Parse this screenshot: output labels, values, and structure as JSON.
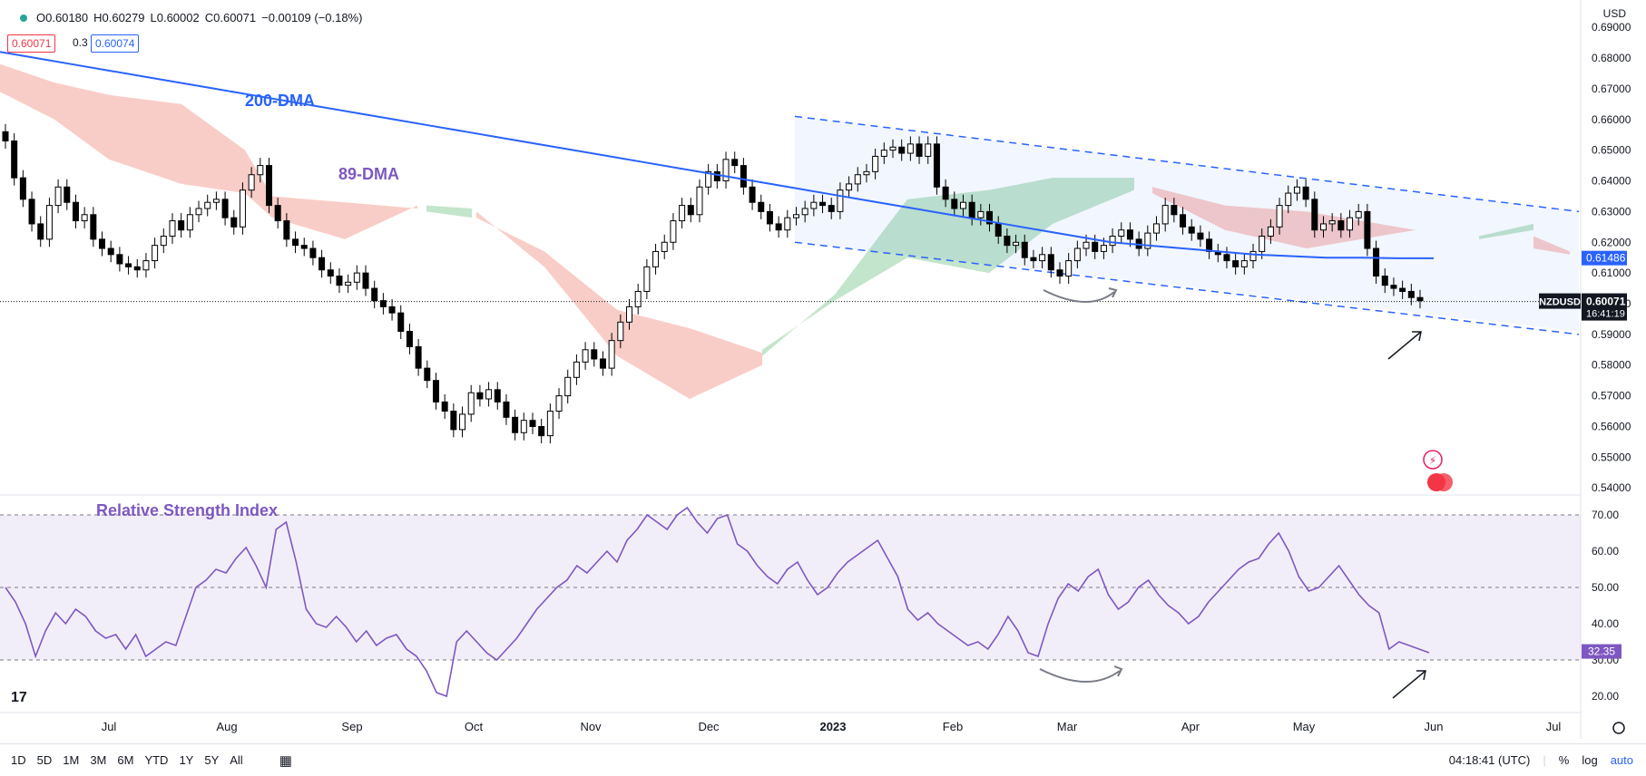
{
  "header": {
    "open": "O0.60180",
    "high": "H0.60279",
    "low": "L0.60002",
    "close": "C0.60071",
    "change": "−0.00109 (−0.18%)",
    "bid": "0.60071",
    "spread": "0.3",
    "ask": "0.60074",
    "currency": "USD"
  },
  "colors": {
    "bull": "#ffffff",
    "bear": "#000000",
    "ma200": "#2962ff",
    "rsi": "#7e57c2",
    "cloud_bear": "#f8c4bd",
    "cloud_bull": "#b9e0c2",
    "channel": "#2962ff",
    "current_price_bg": "#131722",
    "ma_label_bg": "#2962ff",
    "rsi_label_bg": "#7e57c2"
  },
  "toolbar": {
    "ranges": [
      "1D",
      "5D",
      "1M",
      "3M",
      "6M",
      "YTD",
      "1Y",
      "5Y",
      "All"
    ],
    "time": "04:18:41 (UTC)",
    "percent": "%",
    "log": "log",
    "auto": "auto"
  },
  "chart_data": {
    "type": "candlestick",
    "symbol": "NZDUSD",
    "price_axis": {
      "ticks": [
        "0.54000",
        "0.55000",
        "0.56000",
        "0.57000",
        "0.58000",
        "0.59000",
        "0.60000",
        "0.61000",
        "0.62000",
        "0.63000",
        "0.64000",
        "0.65000",
        "0.66000",
        "0.67000",
        "0.68000",
        "0.69000"
      ],
      "range": [
        0.538,
        0.693
      ]
    },
    "time_axis": {
      "labels": [
        "Jul",
        "Aug",
        "Sep",
        "Oct",
        "Nov",
        "Dec",
        "2023",
        "Feb",
        "Mar",
        "Apr",
        "May",
        "Jun",
        "Jul"
      ]
    },
    "current_price": "0.60071",
    "countdown": "16:41:19",
    "ma200_label": "0.61486",
    "annotations": {
      "ma200": "200-DMA",
      "ma89": "89-DMA",
      "rsi_title": "Relative Strength Index"
    },
    "close_series": [
      0.653,
      0.641,
      0.634,
      0.626,
      0.621,
      0.632,
      0.638,
      0.633,
      0.627,
      0.629,
      0.621,
      0.618,
      0.616,
      0.613,
      0.612,
      0.611,
      0.614,
      0.619,
      0.622,
      0.627,
      0.624,
      0.629,
      0.631,
      0.633,
      0.634,
      0.628,
      0.625,
      0.637,
      0.642,
      0.645,
      0.632,
      0.627,
      0.621,
      0.619,
      0.618,
      0.615,
      0.611,
      0.609,
      0.606,
      0.607,
      0.61,
      0.605,
      0.601,
      0.599,
      0.597,
      0.591,
      0.586,
      0.579,
      0.575,
      0.568,
      0.565,
      0.559,
      0.564,
      0.571,
      0.569,
      0.572,
      0.568,
      0.563,
      0.558,
      0.562,
      0.56,
      0.557,
      0.565,
      0.57,
      0.576,
      0.581,
      0.585,
      0.582,
      0.579,
      0.588,
      0.594,
      0.599,
      0.604,
      0.612,
      0.617,
      0.62,
      0.627,
      0.632,
      0.629,
      0.638,
      0.643,
      0.64,
      0.647,
      0.645,
      0.638,
      0.633,
      0.63,
      0.626,
      0.624,
      0.628,
      0.629,
      0.631,
      0.633,
      0.632,
      0.63,
      0.637,
      0.639,
      0.642,
      0.643,
      0.648,
      0.65,
      0.651,
      0.649,
      0.652,
      0.648,
      0.652,
      0.638,
      0.634,
      0.631,
      0.633,
      0.628,
      0.63,
      0.626,
      0.622,
      0.619,
      0.62,
      0.615,
      0.614,
      0.616,
      0.611,
      0.609,
      0.614,
      0.618,
      0.62,
      0.617,
      0.619,
      0.622,
      0.624,
      0.621,
      0.618,
      0.623,
      0.626,
      0.632,
      0.629,
      0.625,
      0.623,
      0.621,
      0.617,
      0.616,
      0.614,
      0.612,
      0.614,
      0.617,
      0.622,
      0.625,
      0.632,
      0.636,
      0.638,
      0.634,
      0.624,
      0.626,
      0.627,
      0.624,
      0.628,
      0.63,
      0.618,
      0.609,
      0.606,
      0.605,
      0.604,
      0.602,
      0.601
    ],
    "ma200_series": [
      0.682,
      0.68,
      0.678,
      0.676,
      0.674,
      0.672,
      0.67,
      0.668,
      0.666,
      0.664,
      0.662,
      0.66,
      0.658,
      0.656,
      0.654,
      0.652,
      0.65,
      0.648,
      0.646,
      0.644,
      0.642,
      0.64,
      0.638,
      0.636,
      0.634,
      0.632,
      0.63,
      0.628,
      0.626,
      0.624,
      0.622,
      0.62,
      0.619,
      0.618,
      0.617,
      0.616,
      0.6155,
      0.615,
      0.615,
      0.6148,
      0.6148
    ],
    "rsi": {
      "ticks": [
        "20.00",
        "30.00",
        "40.00",
        "50.00",
        "60.00",
        "70.00"
      ],
      "range": [
        17,
        73
      ],
      "levels": [
        30,
        50,
        70
      ],
      "current": "32.35",
      "values": [
        50,
        46,
        40,
        31,
        38,
        43,
        40,
        44,
        42,
        38,
        36,
        37,
        33,
        37,
        31,
        33,
        35,
        34,
        42,
        50,
        52,
        55,
        54,
        58,
        61,
        56,
        50,
        66,
        68,
        57,
        44,
        40,
        39,
        42,
        39,
        35,
        38,
        34,
        36,
        37,
        33,
        31,
        27,
        21,
        20,
        35,
        38,
        35,
        32,
        30,
        33,
        36,
        40,
        44,
        47,
        50,
        52,
        56,
        54,
        57,
        60,
        57,
        63,
        66,
        70,
        68,
        66,
        70,
        72,
        68,
        65,
        69,
        70,
        62,
        60,
        56,
        53,
        51,
        55,
        57,
        52,
        48,
        50,
        54,
        57,
        59,
        61,
        63,
        58,
        53,
        44,
        41,
        43,
        40,
        38,
        36,
        34,
        35,
        33,
        37,
        42,
        38,
        32,
        31,
        40,
        47,
        51,
        49,
        53,
        55,
        48,
        44,
        46,
        50,
        52,
        48,
        45,
        43,
        40,
        42,
        46,
        49,
        52,
        55,
        57,
        58,
        62,
        65,
        60,
        53,
        49,
        50,
        53,
        56,
        52,
        48,
        45,
        43,
        33,
        35,
        34,
        33,
        32
      ]
    }
  }
}
